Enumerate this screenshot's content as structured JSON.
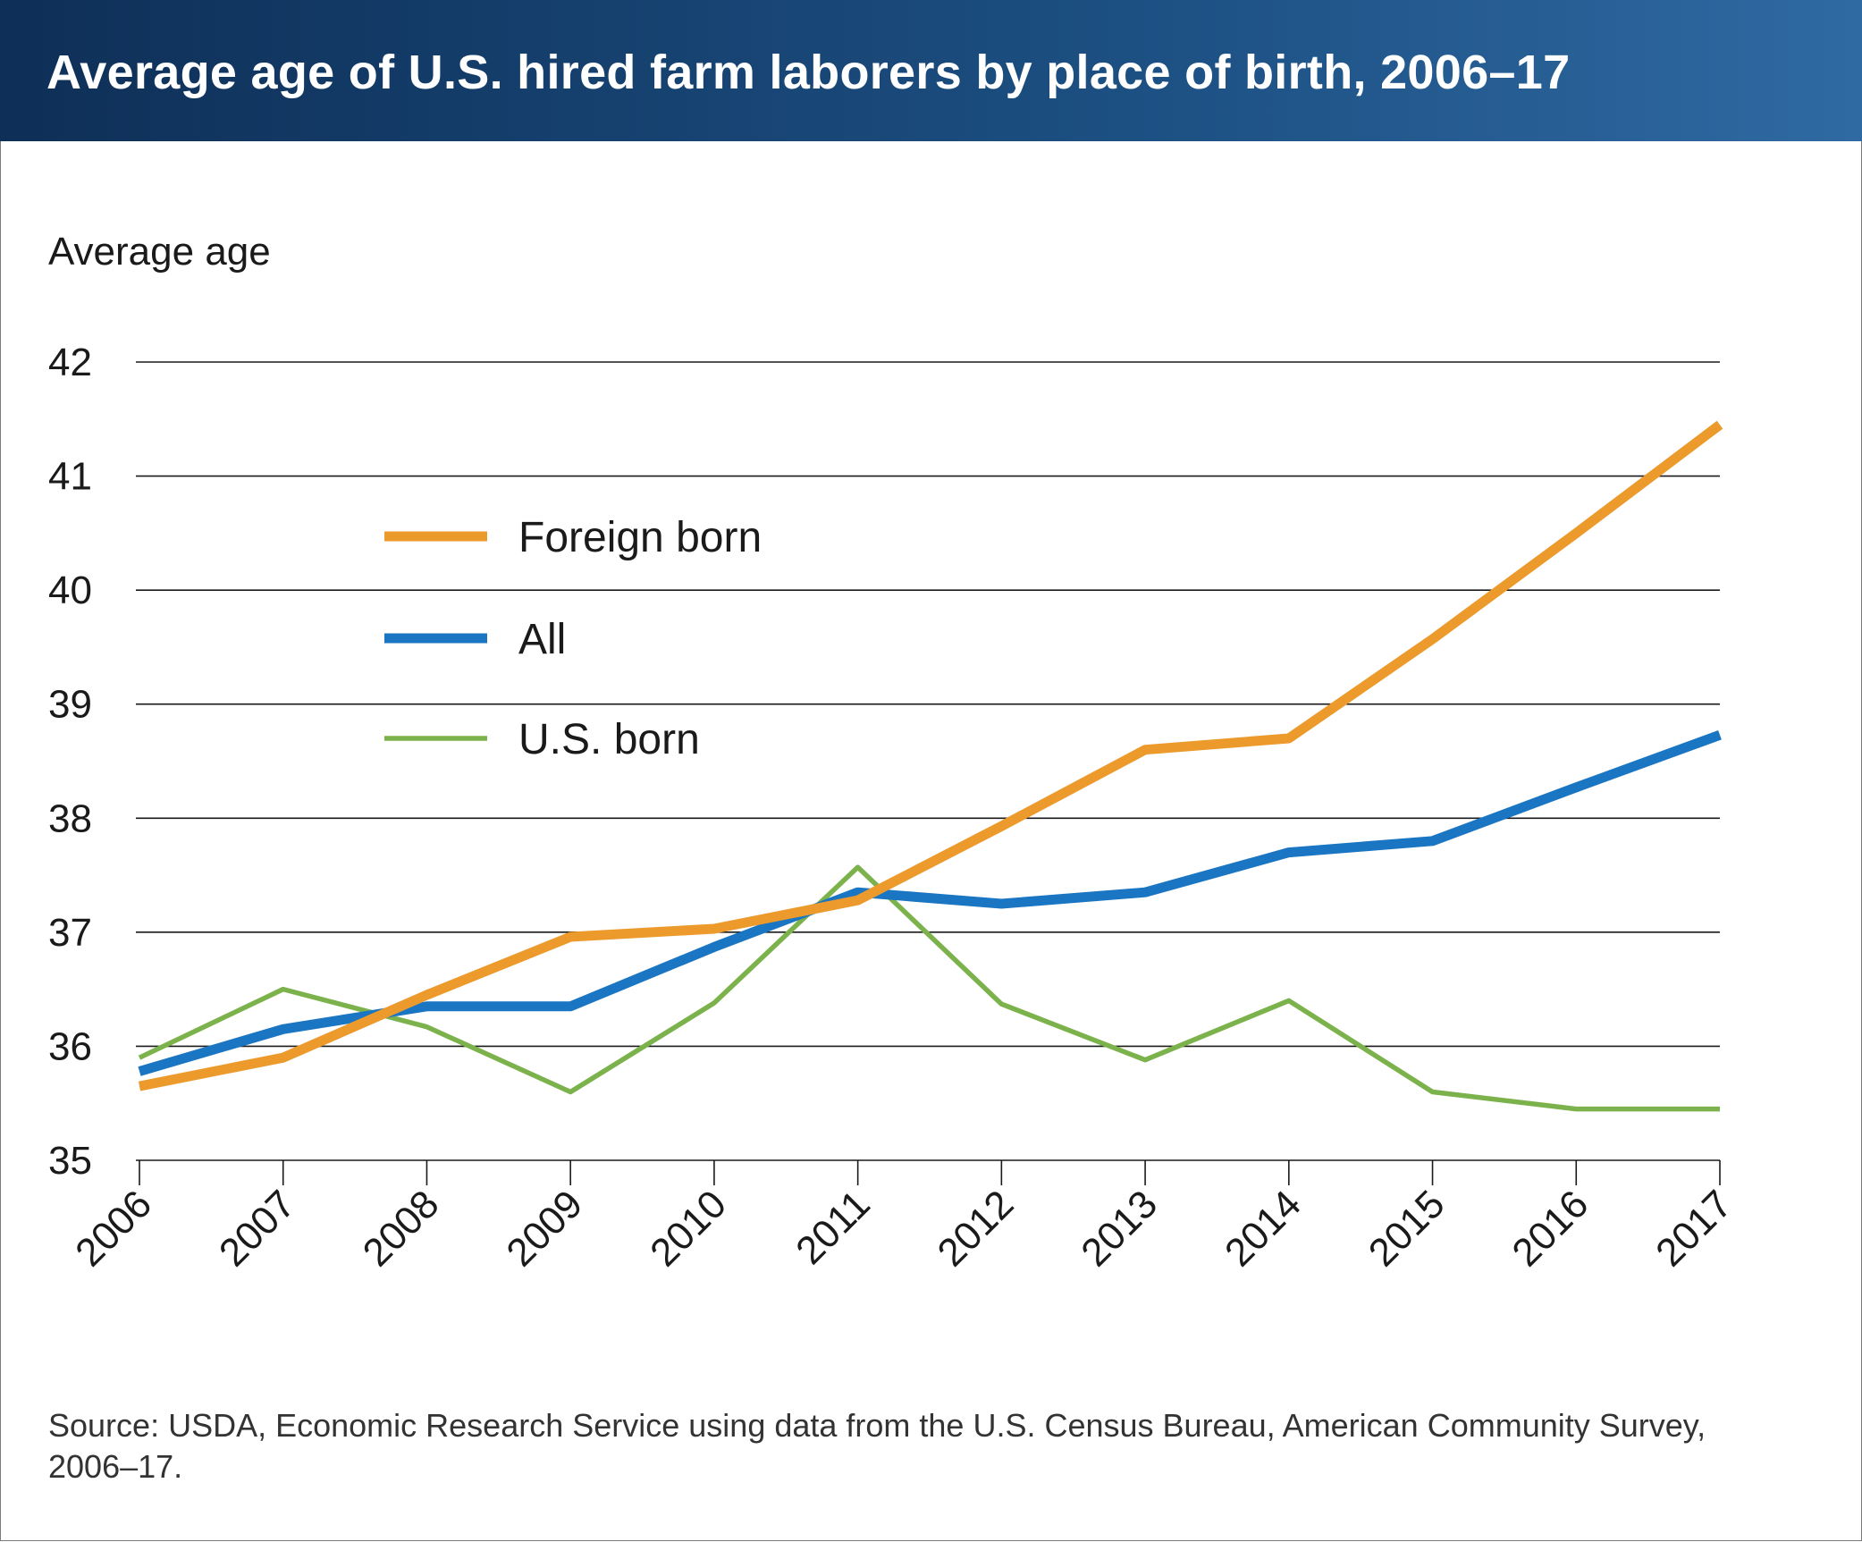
{
  "header": {
    "title": "Average age of U.S. hired farm laborers by place of birth, 2006–17"
  },
  "chart_data": {
    "type": "line",
    "title": "Average age of U.S. hired farm laborers by place of birth, 2006–17",
    "xlabel": "",
    "ylabel": "Average age",
    "x": [
      "2006",
      "2007",
      "2008",
      "2009",
      "2010",
      "2011",
      "2012",
      "2013",
      "2014",
      "2015",
      "2016",
      "2017"
    ],
    "y_ticks": [
      "35",
      "36",
      "37",
      "38",
      "39",
      "40",
      "41",
      "42"
    ],
    "ylim": [
      35,
      42
    ],
    "grid": "horizontal",
    "legend_position": "upper-left inside plot",
    "series": [
      {
        "name": "Foreign born",
        "color": "#ec9a2c",
        "values": [
          35.65,
          35.9,
          36.45,
          36.96,
          37.03,
          37.28,
          37.93,
          38.6,
          38.7,
          39.57,
          40.5,
          41.45
        ]
      },
      {
        "name": "All",
        "color": "#1a75c2",
        "values": [
          35.78,
          36.15,
          36.35,
          36.35,
          36.87,
          37.35,
          37.25,
          37.35,
          37.7,
          37.8,
          38.27,
          38.73
        ]
      },
      {
        "name": "U.S. born",
        "color": "#7cb24b",
        "values": [
          35.9,
          36.5,
          36.17,
          35.6,
          36.38,
          37.57,
          36.37,
          35.88,
          36.4,
          35.6,
          35.45,
          35.45
        ]
      }
    ]
  },
  "source": {
    "text": "Source: USDA, Economic Research Service using data from the U.S. Census Bureau, American Community Survey, 2006–17."
  }
}
